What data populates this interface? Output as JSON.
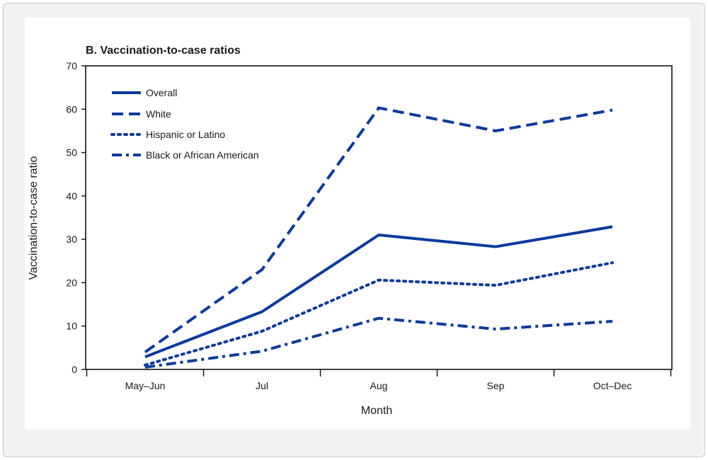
{
  "chart_data": {
    "type": "line",
    "title": "B. Vaccination-to-case ratios",
    "xlabel": "Month",
    "ylabel": "Vaccination-to-case ratio",
    "categories": [
      "May–Jun",
      "Jul",
      "Aug",
      "Sep",
      "Oct–Dec"
    ],
    "ylim": [
      0,
      70
    ],
    "yticks": [
      0,
      10,
      20,
      30,
      40,
      50,
      60,
      70
    ],
    "legend_position": "top-left",
    "series": [
      {
        "name": "Overall",
        "values": [
          2.9,
          13.3,
          31.0,
          28.3,
          32.9
        ],
        "style": "solid"
      },
      {
        "name": "White",
        "values": [
          4.0,
          23.0,
          60.3,
          55.0,
          59.8
        ],
        "style": "dashed"
      },
      {
        "name": "Hispanic or Latino",
        "values": [
          1.0,
          8.8,
          20.6,
          19.4,
          24.6
        ],
        "style": "dotted"
      },
      {
        "name": "Black or African American",
        "values": [
          0.5,
          4.2,
          11.8,
          9.3,
          11.1
        ],
        "style": "dashdot"
      }
    ],
    "line_color": "#0b3a9e"
  }
}
